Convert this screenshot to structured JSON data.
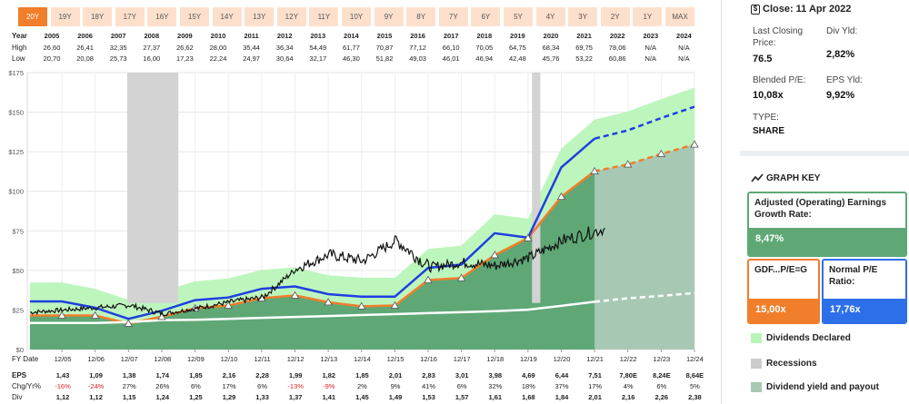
{
  "range_buttons": [
    "20Y",
    "19Y",
    "18Y",
    "17Y",
    "16Y",
    "15Y",
    "14Y",
    "13Y",
    "12Y",
    "11Y",
    "10Y",
    "9Y",
    "8Y",
    "7Y",
    "6Y",
    "5Y",
    "4Y",
    "3Y",
    "2Y",
    "1Y",
    "MAX"
  ],
  "active_range": "20Y",
  "table": {
    "labels": {
      "year": "Year",
      "high": "High",
      "low": "Low"
    },
    "years": [
      "2005",
      "2006",
      "2007",
      "2008",
      "2009",
      "2010",
      "2011",
      "2012",
      "2013",
      "2014",
      "2015",
      "2016",
      "2017",
      "2018",
      "2019",
      "2020",
      "2021",
      "2022",
      "2023",
      "2024"
    ],
    "high": [
      "26,60",
      "26,41",
      "32,35",
      "27,37",
      "26,62",
      "28,00",
      "35,44",
      "36,34",
      "54,49",
      "61,77",
      "70,87",
      "77,12",
      "66,10",
      "70,05",
      "64,75",
      "68,34",
      "69,75",
      "78,06",
      "N/A",
      "N/A"
    ],
    "low": [
      "20,70",
      "20,08",
      "25,73",
      "16,00",
      "17,23",
      "22,24",
      "24,97",
      "30,64",
      "32,17",
      "46,30",
      "51,82",
      "49,03",
      "46,01",
      "46,94",
      "42,48",
      "45,76",
      "53,22",
      "60,86",
      "N/A",
      "N/A"
    ]
  },
  "bottom_table": {
    "labels": {
      "fy": "FY Date",
      "eps": "EPS",
      "chg": "Chg/Yr%",
      "div": "Div"
    },
    "fy_dates": [
      "12/05",
      "12/06",
      "12/07",
      "12/08",
      "12/09",
      "12/10",
      "12/11",
      "12/12",
      "12/13",
      "12/14",
      "12/15",
      "12/16",
      "12/17",
      "12/18",
      "12/19",
      "12/20",
      "12/21",
      "12/22",
      "12/23",
      "12/24"
    ],
    "eps": [
      "1,43",
      "1,09",
      "1,38",
      "1,74",
      "1,85",
      "2,16",
      "2,28",
      "1,99",
      "1,82",
      "1,85",
      "2,01",
      "2,83",
      "3,01",
      "3,98",
      "4,69",
      "6,44",
      "7,51",
      "7,80E",
      "8,24E",
      "8,64E"
    ],
    "chg": [
      "-16%",
      "-24%",
      "27%",
      "26%",
      "6%",
      "17%",
      "6%",
      "-13%",
      "-9%",
      "2%",
      "9%",
      "41%",
      "6%",
      "32%",
      "18%",
      "37%",
      "17%",
      "4%",
      "6%",
      "5%"
    ],
    "div": [
      "1,12",
      "1,12",
      "1,15",
      "1,24",
      "1,25",
      "1,29",
      "1,33",
      "1,37",
      "1,41",
      "1,45",
      "1,49",
      "1,53",
      "1,57",
      "1,61",
      "1,68",
      "1,84",
      "2,01",
      "2,16",
      "2,26",
      "2,38"
    ]
  },
  "side_panel": {
    "close_label": "Close: 11 Apr 2022",
    "last_closing_label": "Last Closing Price:",
    "last_closing_value": "76.5",
    "div_yld_label": "Div Yld:",
    "div_yld_value": "2,82%",
    "blended_pe_label": "Blended P/E:",
    "blended_pe_value": "10,08x",
    "eps_yld_label": "EPS Yld:",
    "eps_yld_value": "9,92%",
    "type_label": "TYPE:",
    "type_value": "SHARE",
    "graph_key_title": "GRAPH KEY",
    "growth_title": "Adjusted (Operating) Earnings Growth Rate:",
    "growth_value": "8,47%",
    "gdf_title": "GDF...P/E=G",
    "gdf_value": "15,00x",
    "normal_pe_title": "Normal P/E Ratio:",
    "normal_pe_value": "17,76x",
    "legend": [
      "Dividends Declared",
      "Recessions",
      "Dividend yield and payout"
    ],
    "colors": {
      "growth": "#5fa876",
      "gdf": "#f07e2a",
      "normal": "#2d6fe8",
      "dividends": "#b9f5b9",
      "recessions": "#cccccc",
      "dividend_yield": "#a7c9b3"
    }
  },
  "chart_data": {
    "type": "line",
    "title": "",
    "xlabel": "",
    "ylabel": "",
    "ylim": [
      0,
      175
    ],
    "y_ticks": [
      "$0",
      "$25",
      "$50",
      "$75",
      "$100",
      "$125",
      "$150",
      "$175"
    ],
    "y_tick_values": [
      0,
      25,
      50,
      75,
      100,
      125,
      150,
      175
    ],
    "x_dates": [
      2005.96,
      2006.96,
      2007.96,
      2008.96,
      2009.96,
      2010.96,
      2011.96,
      2012.96,
      2013.96,
      2014.96,
      2015.96,
      2016.96,
      2017.96,
      2018.96,
      2019.96,
      2020.96,
      2021.96,
      2022.96,
      2023.96,
      2024.96
    ],
    "recessions": [
      [
        2007.92,
        2009.46
      ],
      [
        2020.08,
        2020.33
      ]
    ],
    "series": [
      {
        "name": "Normal P/E (blue)",
        "values": [
          30.4,
          26.4,
          19.4,
          24.5,
          31.2,
          32.9,
          38.4,
          39.9,
          35.0,
          33.4,
          33.4,
          51.6,
          53.7,
          73.5,
          70.7,
          115.1,
          133.3,
          138.5,
          146.3,
          153.4
        ]
      },
      {
        "name": "GDF P/E=G (orange)",
        "values": [
          21.5,
          21.5,
          16.4,
          20.7,
          26.1,
          27.8,
          32.4,
          34.2,
          29.9,
          27.3,
          27.8,
          43.9,
          45.2,
          59.7,
          70.4,
          96.6,
          112.7,
          117.0,
          123.6,
          129.6
        ]
      },
      {
        "name": "Dividend yield line (white)",
        "values": [
          16.8,
          16.8,
          17.3,
          18.6,
          18.8,
          19.4,
          20.0,
          20.6,
          21.2,
          21.8,
          22.4,
          23.0,
          23.6,
          24.2,
          25.2,
          27.6,
          30.2,
          32.4,
          33.9,
          35.7
        ]
      },
      {
        "name": "Price (black)",
        "values": [
          23.5,
          25.0,
          26.5,
          28.0,
          22.5,
          26.0,
          30.0,
          33.0,
          51.0,
          60.0,
          56.0,
          69.0,
          52.0,
          55.0,
          53.0,
          58.0,
          69.0,
          76.5
        ]
      }
    ],
    "price_x": [
      2005.0,
      2006.0,
      2007.0,
      2008.0,
      2009.0,
      2010.0,
      2011.0,
      2012.0,
      2013.0,
      2014.0,
      2015.0,
      2016.0,
      2017.0,
      2018.0,
      2019.0,
      2020.0,
      2021.0,
      2022.28
    ]
  }
}
